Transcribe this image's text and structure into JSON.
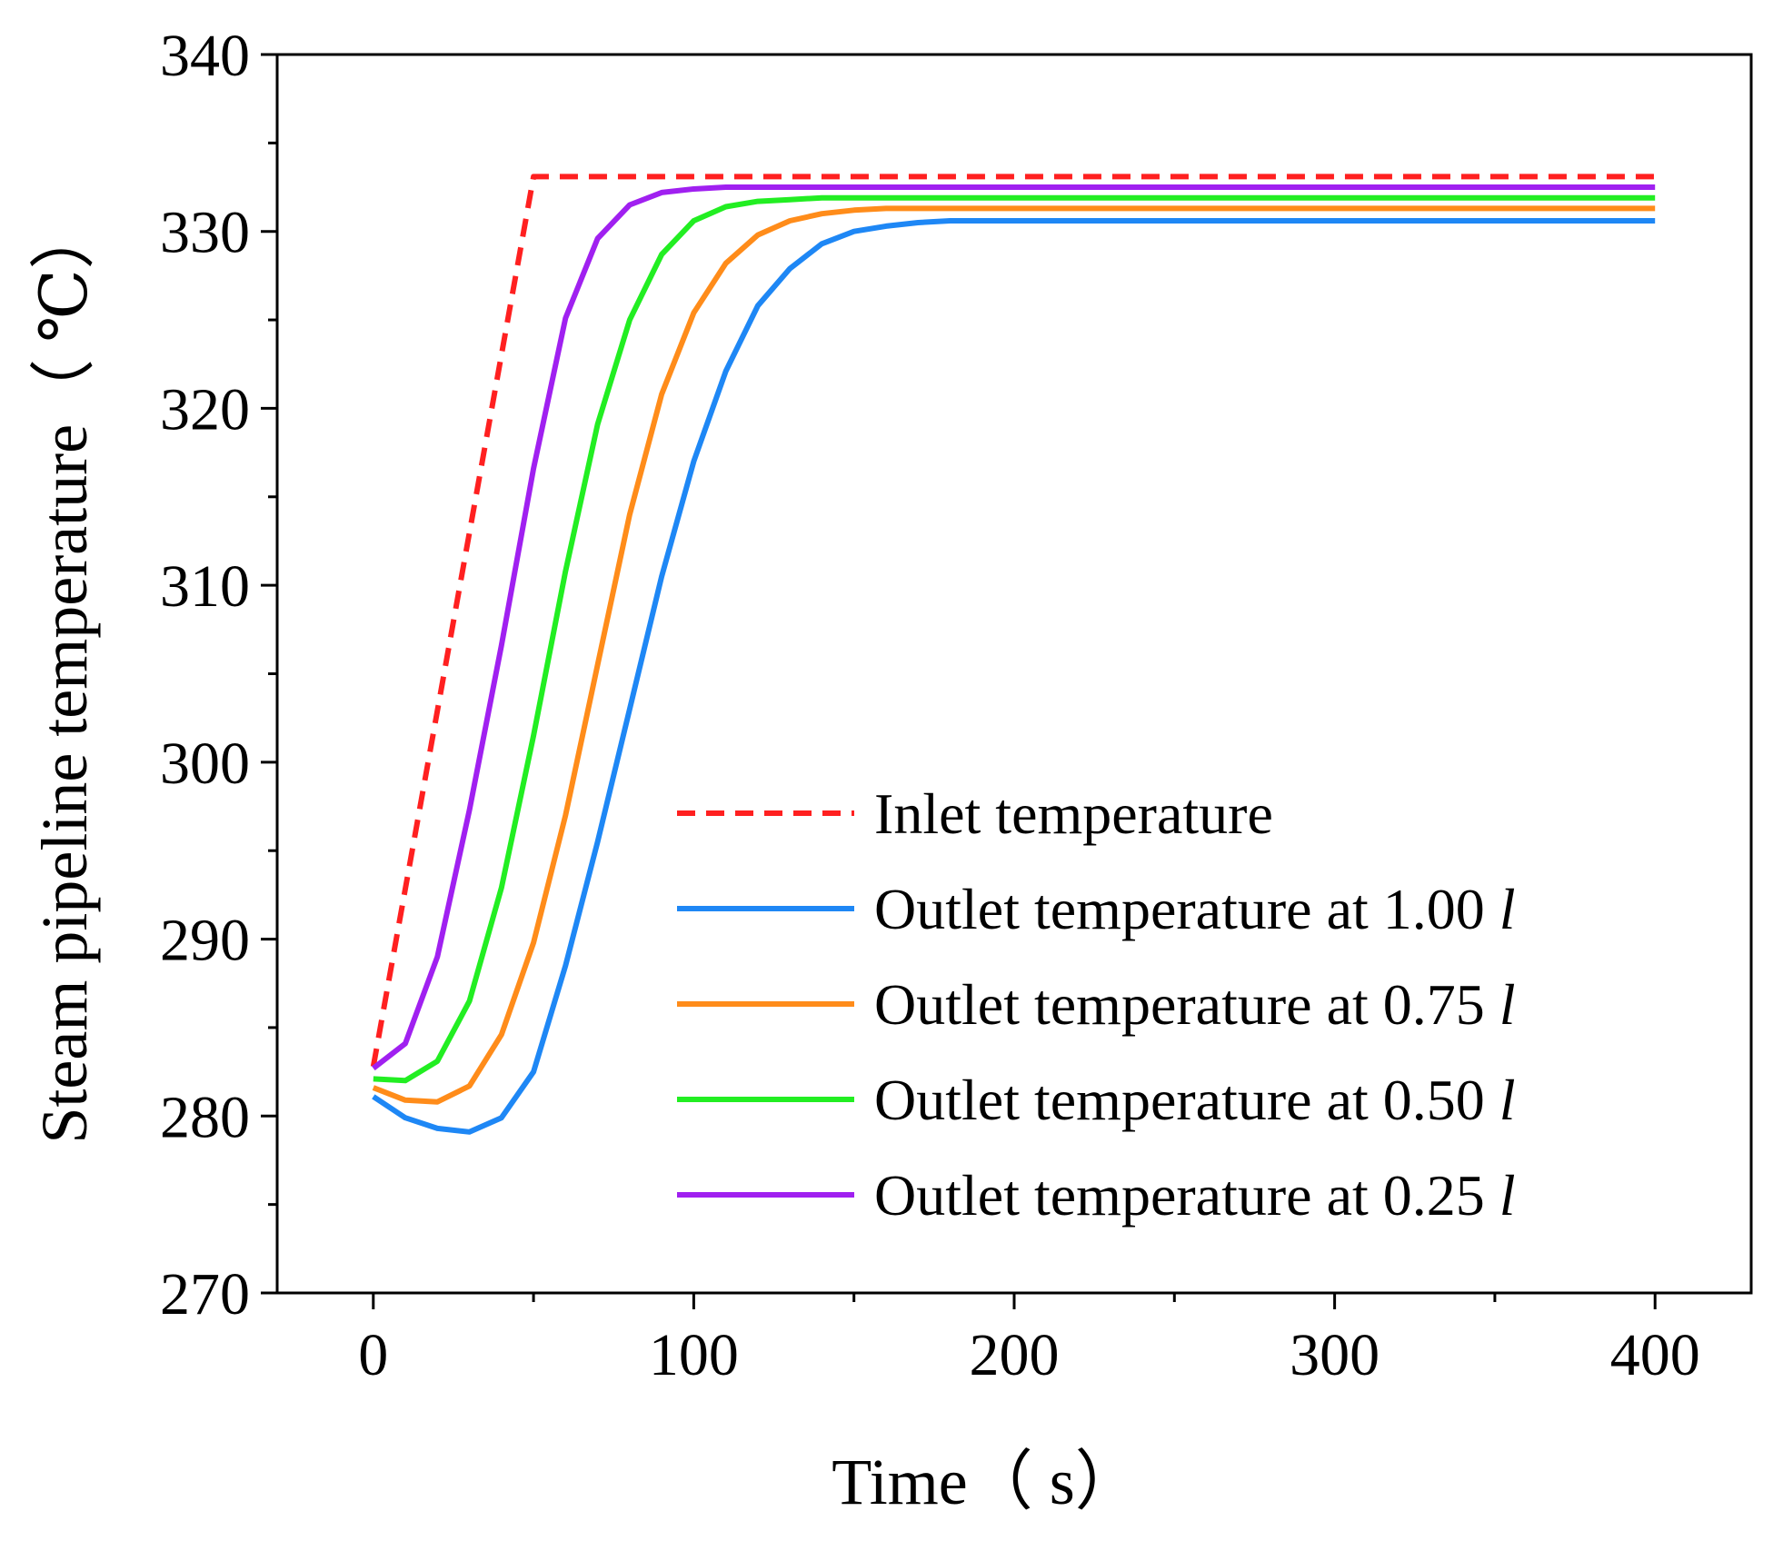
{
  "chart_data": {
    "type": "line",
    "xlabel": "Time（  s）",
    "ylabel": "Steam pipeline temperature（  ℃）",
    "xlim": [
      -30,
      430
    ],
    "ylim": [
      270,
      340
    ],
    "xticks": [
      0,
      100,
      200,
      300,
      400
    ],
    "yticks": [
      270,
      280,
      290,
      300,
      310,
      320,
      330,
      340
    ],
    "xtick_labels": [
      "0",
      "100",
      "200",
      "300",
      "400"
    ],
    "ytick_labels": [
      "270",
      "280",
      "290",
      "300",
      "310",
      "320",
      "330",
      "340"
    ],
    "grid": false,
    "legend_position": "bottom-right",
    "series": [
      {
        "name": "Inlet temperature",
        "legend_main": "Inlet temperature",
        "legend_italic": "",
        "color": "#ff2020",
        "style": "dashed",
        "x": [
          0,
          50,
          400
        ],
        "y": [
          282.8,
          333.1,
          333.1
        ]
      },
      {
        "name": "Outlet temperature at 1.00 l",
        "legend_main": "Outlet temperature at 1.00 ",
        "legend_italic": "l",
        "color": "#1e87f5",
        "style": "solid",
        "x": [
          0,
          10,
          20,
          30,
          40,
          50,
          60,
          70,
          80,
          90,
          100,
          110,
          120,
          130,
          140,
          150,
          160,
          170,
          180,
          200,
          250,
          300,
          350,
          400
        ],
        "y": [
          281.1,
          279.9,
          279.3,
          279.1,
          279.9,
          282.5,
          288.5,
          295.5,
          303.0,
          310.5,
          317.0,
          322.1,
          325.8,
          327.9,
          329.3,
          330.0,
          330.3,
          330.5,
          330.6,
          330.6,
          330.6,
          330.6,
          330.6,
          330.6
        ]
      },
      {
        "name": "Outlet temperature at 0.75 l",
        "legend_main": "Outlet temperature at 0.75 ",
        "legend_italic": "l",
        "color": "#ff8c1a",
        "style": "solid",
        "x": [
          0,
          10,
          20,
          30,
          40,
          50,
          60,
          70,
          80,
          90,
          100,
          110,
          120,
          130,
          140,
          150,
          160,
          170,
          200,
          250,
          300,
          350,
          400
        ],
        "y": [
          281.6,
          280.9,
          280.8,
          281.7,
          284.6,
          289.8,
          297.0,
          305.5,
          314.0,
          320.8,
          325.4,
          328.2,
          329.8,
          330.6,
          331.0,
          331.2,
          331.3,
          331.3,
          331.3,
          331.3,
          331.3,
          331.3,
          331.3
        ]
      },
      {
        "name": "Outlet temperature at 0.50 l",
        "legend_main": "Outlet temperature at 0.50 ",
        "legend_italic": "l",
        "color": "#22ee22",
        "style": "solid",
        "x": [
          0,
          10,
          20,
          30,
          40,
          50,
          60,
          70,
          80,
          90,
          100,
          110,
          120,
          130,
          140,
          150,
          200,
          250,
          300,
          350,
          400
        ],
        "y": [
          282.1,
          282.0,
          283.1,
          286.5,
          292.9,
          301.5,
          310.8,
          319.1,
          325.0,
          328.7,
          330.6,
          331.4,
          331.7,
          331.8,
          331.9,
          331.9,
          331.9,
          331.9,
          331.9,
          331.9,
          331.9
        ]
      },
      {
        "name": "Outlet temperature at 0.25 l",
        "legend_main": "Outlet temperature at 0.25 ",
        "legend_italic": "l",
        "color": "#a020f0",
        "style": "solid",
        "x": [
          0,
          10,
          20,
          30,
          40,
          50,
          60,
          70,
          80,
          90,
          100,
          110,
          120,
          150,
          200,
          250,
          300,
          350,
          400
        ],
        "y": [
          282.7,
          284.1,
          289.0,
          297.3,
          306.6,
          316.6,
          325.1,
          329.6,
          331.5,
          332.2,
          332.4,
          332.5,
          332.5,
          332.5,
          332.5,
          332.5,
          332.5,
          332.5,
          332.5
        ]
      }
    ]
  }
}
